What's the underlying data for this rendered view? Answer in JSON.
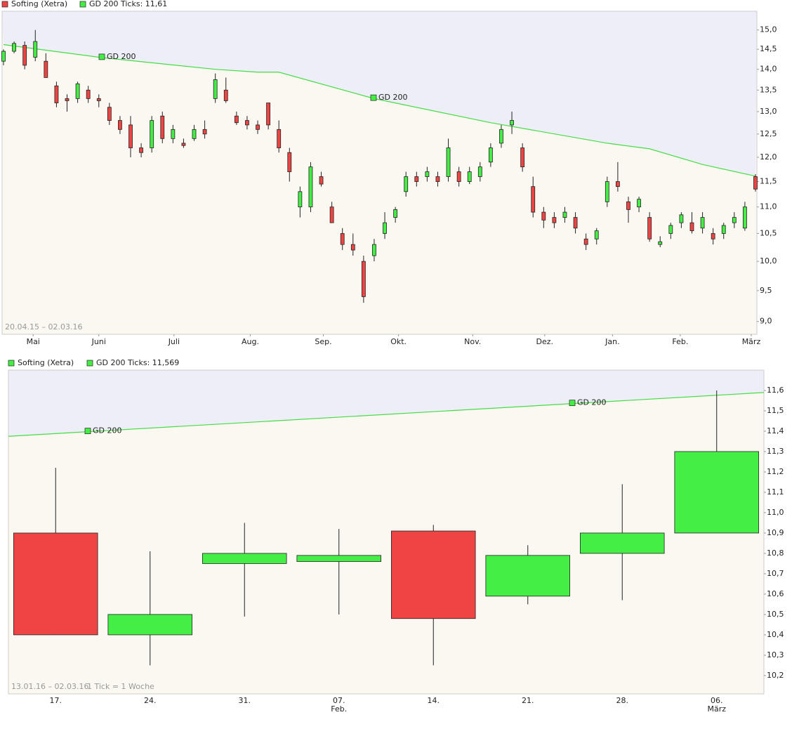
{
  "chart_data": [
    {
      "type": "candlestick",
      "date_range": "20.04.15 – 02.03.16",
      "annotations": [
        "GD 200",
        "GD 200"
      ],
      "ylim": [
        8.8,
        15.5
      ],
      "log_scale": true,
      "yticks": [
        {
          "value": 9,
          "label": "9,0"
        },
        {
          "value": 9.5,
          "label": "9,5"
        },
        {
          "value": 10,
          "label": "10,0"
        },
        {
          "value": 10.5,
          "label": "10,5"
        },
        {
          "value": 11,
          "label": "11,0"
        },
        {
          "value": 11.5,
          "label": "11,5"
        },
        {
          "value": 12,
          "label": "12,0"
        },
        {
          "value": 12.5,
          "label": "12,5"
        },
        {
          "value": 13,
          "label": "13,0"
        },
        {
          "value": 13.5,
          "label": "13,5"
        },
        {
          "value": 14,
          "label": "14,0"
        },
        {
          "value": 14.5,
          "label": "14,5"
        },
        {
          "value": 15,
          "label": "15,0"
        }
      ],
      "xticks": [
        {
          "value": 2.8,
          "label": "Mai"
        },
        {
          "value": 9.0,
          "label": "Juni"
        },
        {
          "value": 16.1,
          "label": "Juli"
        },
        {
          "value": 23.3,
          "label": "Aug."
        },
        {
          "value": 30.2,
          "label": "Sep."
        },
        {
          "value": 37.3,
          "label": "Okt."
        },
        {
          "value": 44.3,
          "label": "Nov."
        },
        {
          "value": 51.1,
          "label": "Dez."
        },
        {
          "value": 57.5,
          "label": "Jan."
        },
        {
          "value": 63.9,
          "label": "Feb."
        },
        {
          "value": 70.6,
          "label": "März"
        }
      ],
      "series": [
        {
          "name": "Softing (Xetra)",
          "color": "#ee4444",
          "up_color": "#44ee44",
          "down_color": "#ee4444",
          "ohlc": [
            [
              14.2,
              14.5,
              14.1,
              14.45
            ],
            [
              14.45,
              14.7,
              14.4,
              14.65
            ],
            [
              14.6,
              14.7,
              14.0,
              14.1
            ],
            [
              14.3,
              15.0,
              14.2,
              14.7
            ],
            [
              14.2,
              14.4,
              13.8,
              13.8
            ],
            [
              13.6,
              13.7,
              13.1,
              13.2
            ],
            [
              13.3,
              13.4,
              13.0,
              13.25
            ],
            [
              13.3,
              13.7,
              13.2,
              13.65
            ],
            [
              13.5,
              13.6,
              13.2,
              13.3
            ],
            [
              13.3,
              13.4,
              13.1,
              13.25
            ],
            [
              13.1,
              13.2,
              12.7,
              12.8
            ],
            [
              12.8,
              12.9,
              12.5,
              12.6
            ],
            [
              12.7,
              12.9,
              12.0,
              12.2
            ],
            [
              12.2,
              12.3,
              12.0,
              12.1
            ],
            [
              12.2,
              12.9,
              12.1,
              12.8
            ],
            [
              12.9,
              13.0,
              12.3,
              12.4
            ],
            [
              12.4,
              12.7,
              12.3,
              12.6
            ],
            [
              12.3,
              12.4,
              12.2,
              12.25
            ],
            [
              12.4,
              12.7,
              12.35,
              12.6
            ],
            [
              12.6,
              12.8,
              12.4,
              12.5
            ],
            [
              13.3,
              13.9,
              13.2,
              13.75
            ],
            [
              13.5,
              13.8,
              13.2,
              13.25
            ],
            [
              12.9,
              13.0,
              12.7,
              12.75
            ],
            [
              12.8,
              12.9,
              12.6,
              12.7
            ],
            [
              12.7,
              12.8,
              12.5,
              12.6
            ],
            [
              13.2,
              13.2,
              12.6,
              12.7
            ],
            [
              12.6,
              12.8,
              12.1,
              12.2
            ],
            [
              12.1,
              12.2,
              11.5,
              11.7
            ],
            [
              11.0,
              11.4,
              10.8,
              11.3
            ],
            [
              11.0,
              11.9,
              10.9,
              11.8
            ],
            [
              11.6,
              11.7,
              11.4,
              11.45
            ],
            [
              11.0,
              11.1,
              10.7,
              10.7
            ],
            [
              10.5,
              10.6,
              10.2,
              10.3
            ],
            [
              10.3,
              10.5,
              10.1,
              10.2
            ],
            [
              10.0,
              10.1,
              9.3,
              9.4
            ],
            [
              10.1,
              10.4,
              10.0,
              10.3
            ],
            [
              10.5,
              10.9,
              10.4,
              10.7
            ],
            [
              10.8,
              11.0,
              10.7,
              10.95
            ],
            [
              11.3,
              11.7,
              11.2,
              11.6
            ],
            [
              11.6,
              11.7,
              11.4,
              11.5
            ],
            [
              11.6,
              11.8,
              11.5,
              11.7
            ],
            [
              11.6,
              11.7,
              11.4,
              11.5
            ],
            [
              11.6,
              12.4,
              11.5,
              12.2
            ],
            [
              11.7,
              11.8,
              11.4,
              11.5
            ],
            [
              11.5,
              11.8,
              11.45,
              11.7
            ],
            [
              11.6,
              11.9,
              11.5,
              11.8
            ],
            [
              11.9,
              12.3,
              11.8,
              12.2
            ],
            [
              12.3,
              12.7,
              12.2,
              12.6
            ],
            [
              12.7,
              13.0,
              12.5,
              12.8
            ],
            [
              12.2,
              12.3,
              11.7,
              11.8
            ],
            [
              11.4,
              11.6,
              10.8,
              10.9
            ],
            [
              10.9,
              11.0,
              10.6,
              10.75
            ],
            [
              10.8,
              10.9,
              10.6,
              10.7
            ],
            [
              10.8,
              11.0,
              10.7,
              10.9
            ],
            [
              10.8,
              10.9,
              10.5,
              10.6
            ],
            [
              10.4,
              10.5,
              10.2,
              10.3
            ],
            [
              10.4,
              10.6,
              10.3,
              10.55
            ],
            [
              11.1,
              11.6,
              11.0,
              11.5
            ],
            [
              11.5,
              11.9,
              11.3,
              11.4
            ],
            [
              11.1,
              11.2,
              10.7,
              10.95
            ],
            [
              11.0,
              11.2,
              10.9,
              11.15
            ],
            [
              10.8,
              10.9,
              10.35,
              10.4
            ],
            [
              10.3,
              10.45,
              10.25,
              10.35
            ],
            [
              10.5,
              10.7,
              10.4,
              10.65
            ],
            [
              10.7,
              10.9,
              10.6,
              10.85
            ],
            [
              10.7,
              10.9,
              10.5,
              10.55
            ],
            [
              10.6,
              10.9,
              10.5,
              10.8
            ],
            [
              10.5,
              10.6,
              10.3,
              10.4
            ],
            [
              10.5,
              10.7,
              10.4,
              10.65
            ],
            [
              10.7,
              10.9,
              10.6,
              10.8
            ],
            [
              10.6,
              11.1,
              10.55,
              11.0
            ],
            [
              11.6,
              11.65,
              11.3,
              11.35
            ]
          ]
        },
        {
          "name": "GD 200 Ticks: 11,61",
          "type": "line",
          "color": "#44dd44",
          "x": [
            0,
            9,
            20,
            24,
            26,
            35,
            46,
            57,
            61,
            66,
            71
          ],
          "values": [
            14.62,
            14.3,
            14.0,
            13.93,
            13.93,
            13.3,
            12.75,
            12.3,
            12.18,
            11.85,
            11.61
          ]
        }
      ]
    },
    {
      "type": "candlestick",
      "date_range": "13.01.16 – 02.03.16",
      "tick_note": "1 Tick = 1 Woche",
      "annotations": [
        "GD 200",
        "GD 200"
      ],
      "ylim": [
        10.11,
        11.7
      ],
      "yticks": [
        {
          "value": 10.2,
          "label": "10,2"
        },
        {
          "value": 10.3,
          "label": "10,3"
        },
        {
          "value": 10.4,
          "label": "10,4"
        },
        {
          "value": 10.5,
          "label": "10,5"
        },
        {
          "value": 10.6,
          "label": "10,6"
        },
        {
          "value": 10.7,
          "label": "10,7"
        },
        {
          "value": 10.8,
          "label": "10,8"
        },
        {
          "value": 10.9,
          "label": "10,9"
        },
        {
          "value": 11.0,
          "label": "11,0"
        },
        {
          "value": 11.1,
          "label": "11,1"
        },
        {
          "value": 11.2,
          "label": "11,2"
        },
        {
          "value": 11.3,
          "label": "11,3"
        },
        {
          "value": 11.4,
          "label": "11,4"
        },
        {
          "value": 11.5,
          "label": "11,5"
        },
        {
          "value": 11.6,
          "label": "11,6"
        }
      ],
      "categories": [
        "17.",
        "24.",
        "31.",
        "07.",
        "14.",
        "21.",
        "28.",
        "06."
      ],
      "month_labels": [
        null,
        null,
        null,
        "Feb.",
        null,
        null,
        null,
        "März"
      ],
      "series": [
        {
          "name": "Softing (Xetra)",
          "color": "#44ee44",
          "up_color": "#44ee44",
          "down_color": "#ee4444",
          "ohlc": [
            [
              10.9,
              11.22,
              10.4,
              10.4
            ],
            [
              10.4,
              10.81,
              10.25,
              10.5
            ],
            [
              10.75,
              10.95,
              10.49,
              10.8
            ],
            [
              10.76,
              10.92,
              10.5,
              10.79
            ],
            [
              10.91,
              10.94,
              10.25,
              10.48
            ],
            [
              10.59,
              10.84,
              10.55,
              10.79
            ],
            [
              10.8,
              11.14,
              10.57,
              10.9
            ],
            [
              10.9,
              11.6,
              10.9,
              11.3
            ]
          ]
        },
        {
          "name": "GD 200 Ticks: 11,569",
          "type": "line",
          "color": "#44dd44",
          "x": [
            -0.5,
            7.5
          ],
          "values": [
            11.375,
            11.59
          ]
        }
      ]
    }
  ]
}
